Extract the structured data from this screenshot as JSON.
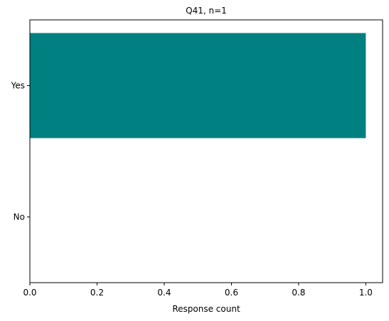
{
  "chart_data": {
    "type": "bar",
    "orientation": "horizontal",
    "title": "Q41, n=1",
    "xlabel": "Response count",
    "ylabel": "",
    "categories": [
      "Yes",
      "No"
    ],
    "values": [
      1,
      0
    ],
    "xlim": [
      0,
      1.05
    ],
    "x_ticks": [
      0.0,
      0.2,
      0.4,
      0.6,
      0.8,
      1.0
    ],
    "x_tick_labels": [
      "0.0",
      "0.2",
      "0.4",
      "0.6",
      "0.8",
      "1.0"
    ],
    "grid": false,
    "legend": "none",
    "bar_color": "#008080"
  }
}
